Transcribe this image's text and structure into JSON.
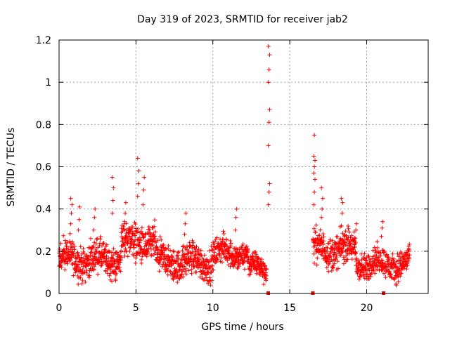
{
  "chart_data": {
    "type": "scatter",
    "title": "Day 319 of 2023, SRMTID for receiver jab2",
    "xlabel": "GPS time / hours",
    "ylabel": "SRMTID / TECUs",
    "xlim": [
      0,
      24
    ],
    "ylim": [
      0,
      1.2
    ],
    "xticks": [
      0,
      5,
      10,
      15,
      20
    ],
    "xtick_labels": [
      "0",
      "5",
      "10",
      "15",
      "20"
    ],
    "yticks": [
      0,
      0.2,
      0.4,
      0.6,
      0.8,
      1.0,
      1.2
    ],
    "ytick_labels": [
      "0",
      "0.2",
      "0.4",
      "0.6",
      "0.8",
      "1",
      "1.2"
    ],
    "grid": true,
    "marker": "+",
    "series_color": "#ff0000",
    "series": [
      {
        "name": "SRMTID",
        "segments": [
          {
            "x_start": 0.0,
            "x_end": 4.0,
            "center": 0.16,
            "spread": 0.07
          },
          {
            "x_start": 4.0,
            "x_end": 6.3,
            "center": 0.24,
            "spread": 0.08
          },
          {
            "x_start": 6.3,
            "x_end": 10.0,
            "center": 0.15,
            "spread": 0.07
          },
          {
            "x_start": 10.0,
            "x_end": 12.3,
            "center": 0.19,
            "spread": 0.06
          },
          {
            "x_start": 12.3,
            "x_end": 13.5,
            "center": 0.12,
            "spread": 0.05
          },
          {
            "x_start": 16.5,
            "x_end": 19.3,
            "center": 0.21,
            "spread": 0.07
          },
          {
            "x_start": 19.3,
            "x_end": 22.8,
            "center": 0.14,
            "spread": 0.06
          }
        ],
        "spikes": [
          {
            "x": 0.8,
            "values": [
              0.33,
              0.38,
              0.42,
              0.45
            ]
          },
          {
            "x": 1.3,
            "values": [
              0.3,
              0.35,
              0.41
            ]
          },
          {
            "x": 2.3,
            "values": [
              0.3,
              0.36,
              0.4
            ]
          },
          {
            "x": 3.5,
            "values": [
              0.38,
              0.44,
              0.5,
              0.55
            ]
          },
          {
            "x": 4.3,
            "values": [
              0.33,
              0.38,
              0.43
            ]
          },
          {
            "x": 5.15,
            "values": [
              0.46,
              0.52,
              0.58,
              0.64
            ]
          },
          {
            "x": 5.5,
            "values": [
              0.42,
              0.49,
              0.55
            ]
          },
          {
            "x": 8.2,
            "values": [
              0.28,
              0.33,
              0.38
            ]
          },
          {
            "x": 11.5,
            "values": [
              0.3,
              0.36,
              0.4
            ]
          },
          {
            "x": 13.65,
            "values": [
              0.42,
              0.48,
              0.52,
              0.7,
              0.81,
              0.87,
              1.0,
              1.06,
              1.13,
              1.17
            ]
          },
          {
            "x": 16.6,
            "values": [
              0.42,
              0.48,
              0.54,
              0.57,
              0.6,
              0.63,
              0.65,
              0.75
            ]
          },
          {
            "x": 17.1,
            "values": [
              0.36,
              0.4,
              0.45,
              0.5
            ]
          },
          {
            "x": 18.4,
            "values": [
              0.32,
              0.38,
              0.43,
              0.45
            ]
          },
          {
            "x": 19.3,
            "values": [
              0.26,
              0.3,
              0.33
            ]
          },
          {
            "x": 21.0,
            "values": [
              0.27,
              0.31,
              0.34
            ]
          }
        ],
        "gaps": [
          [
            13.8,
            16.4
          ]
        ],
        "zero_marks": [
          13.6,
          16.5,
          21.1
        ]
      }
    ]
  }
}
